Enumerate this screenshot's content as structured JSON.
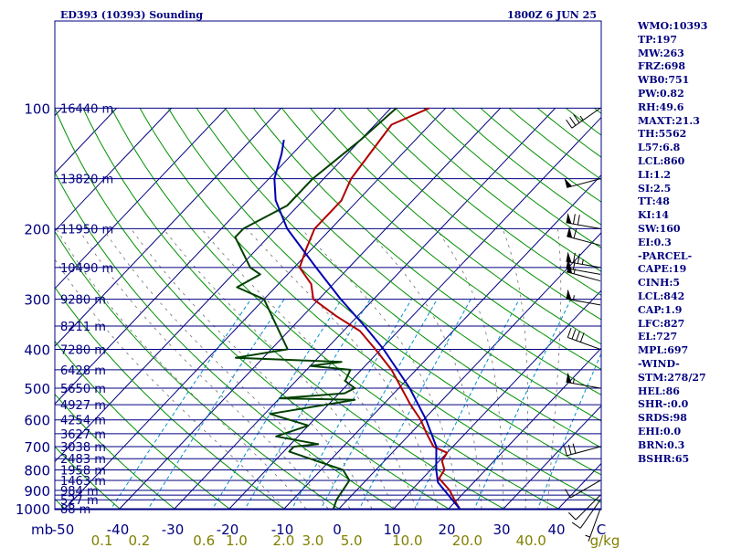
{
  "chart_data": {
    "type": "skew-t log-p sounding",
    "title": "ED393 (10393) Sounding",
    "valid_time": "1800Z  6 JUN 25",
    "xlabel": "",
    "ylabel": "mb",
    "pressure_axis": {
      "unit": "mb",
      "scale": "log",
      "range": [
        1000,
        100
      ],
      "tick_labels": [
        "100",
        "200",
        "300",
        "400",
        "500",
        "600",
        "700",
        "800",
        "900",
        "1000"
      ]
    },
    "temperature_axis": {
      "unit": "°C",
      "skewed": true,
      "range": [
        -50,
        50
      ],
      "tick_labels": [
        "-50",
        "-40",
        "-30",
        "-20",
        "-10",
        "0",
        "10",
        "20",
        "30",
        "40"
      ]
    },
    "mixing_ratio_axis": {
      "unit": "g/kg",
      "tick_labels": [
        "0.1",
        "0.2",
        "0.6",
        "1.0",
        "2.0",
        "3.0",
        "5.0",
        "10.0",
        "20.0",
        "40.0"
      ]
    },
    "height_labels": [
      "16440 m",
      "13820 m",
      "11950 m",
      "10490 m",
      "9280 m",
      "8211 m",
      "7280 m",
      "6428 m",
      "5650 m",
      "4927 m",
      "4254 m",
      "3627 m",
      "3038 m",
      "2483 m",
      "1958 m",
      "1463 m",
      "984 m",
      "527 m",
      "88 m"
    ],
    "height_pressures": [
      100,
      150,
      200,
      250,
      300,
      350,
      400,
      450,
      500,
      550,
      600,
      650,
      700,
      750,
      800,
      850,
      900,
      950,
      1000
    ],
    "isobars_mb": [
      100,
      150,
      200,
      250,
      300,
      350,
      400,
      450,
      500,
      550,
      600,
      650,
      700,
      750,
      800,
      850,
      900,
      925,
      950,
      1000
    ],
    "series": [
      {
        "name": "",
        "role": "temperature",
        "color": "#b00000",
        "points": [
          [
            100,
            -53
          ],
          [
            110,
            -57
          ],
          [
            150,
            -55
          ],
          [
            170,
            -53
          ],
          [
            200,
            -53
          ],
          [
            225,
            -51
          ],
          [
            250,
            -49
          ],
          [
            275,
            -44
          ],
          [
            300,
            -41
          ],
          [
            330,
            -34
          ],
          [
            360,
            -27
          ],
          [
            400,
            -21
          ],
          [
            430,
            -17
          ],
          [
            450,
            -14.5
          ],
          [
            500,
            -9.5
          ],
          [
            550,
            -5
          ],
          [
            600,
            -0.5
          ],
          [
            650,
            3
          ],
          [
            700,
            6.5
          ],
          [
            725,
            10
          ],
          [
            760,
            10.5
          ],
          [
            800,
            12.5
          ],
          [
            840,
            13
          ],
          [
            900,
            17
          ],
          [
            950,
            19.5
          ],
          [
            1000,
            22
          ]
        ]
      },
      {
        "name": "",
        "role": "dewpoint",
        "color": "#004000",
        "points": [
          [
            100,
            -59
          ],
          [
            120,
            -60
          ],
          [
            150,
            -62
          ],
          [
            175,
            -62
          ],
          [
            200,
            -66
          ],
          [
            210,
            -66
          ],
          [
            250,
            -58
          ],
          [
            260,
            -55
          ],
          [
            280,
            -57
          ],
          [
            300,
            -50
          ],
          [
            400,
            -37
          ],
          [
            420,
            -45
          ],
          [
            430,
            -25
          ],
          [
            440,
            -30
          ],
          [
            450,
            -22
          ],
          [
            480,
            -21
          ],
          [
            500,
            -18
          ],
          [
            515,
            -19
          ],
          [
            530,
            -30
          ],
          [
            535,
            -16
          ],
          [
            580,
            -29
          ],
          [
            620,
            -20
          ],
          [
            660,
            -24
          ],
          [
            690,
            -15
          ],
          [
            700,
            -19
          ],
          [
            720,
            -19
          ],
          [
            800,
            -6
          ],
          [
            850,
            -3
          ],
          [
            900,
            -2.5
          ],
          [
            950,
            -2
          ],
          [
            1000,
            -1
          ]
        ]
      },
      {
        "name": "",
        "role": "parcel",
        "color": "#0000b0",
        "points": [
          [
            1000,
            22
          ],
          [
            860,
            13.5
          ],
          [
            800,
            11
          ],
          [
            700,
            7
          ],
          [
            600,
            0.5
          ],
          [
            500,
            -8
          ],
          [
            400,
            -19.5
          ],
          [
            350,
            -27
          ],
          [
            300,
            -36
          ],
          [
            250,
            -46
          ],
          [
            200,
            -58
          ],
          [
            170,
            -65
          ],
          [
            150,
            -69
          ],
          [
            130,
            -72
          ],
          [
            120,
            -74
          ]
        ]
      }
    ],
    "wind_barbs": [
      {
        "pressure": 100,
        "direction": 235,
        "speed_kt": 35
      },
      {
        "pressure": 150,
        "direction": 255,
        "speed_kt": 50
      },
      {
        "pressure": 200,
        "direction": 280,
        "speed_kt": 70
      },
      {
        "pressure": 220,
        "direction": 285,
        "speed_kt": 60
      },
      {
        "pressure": 250,
        "direction": 280,
        "speed_kt": 75
      },
      {
        "pressure": 260,
        "direction": 280,
        "speed_kt": 60
      },
      {
        "pressure": 270,
        "direction": 285,
        "speed_kt": 55
      },
      {
        "pressure": 310,
        "direction": 280,
        "speed_kt": 55
      },
      {
        "pressure": 400,
        "direction": 290,
        "speed_kt": 40
      },
      {
        "pressure": 500,
        "direction": 280,
        "speed_kt": 55
      },
      {
        "pressure": 700,
        "direction": 255,
        "speed_kt": 30
      },
      {
        "pressure": 850,
        "direction": 240,
        "speed_kt": 10
      },
      {
        "pressure": 925,
        "direction": 225,
        "speed_kt": 10
      },
      {
        "pressure": 950,
        "direction": 215,
        "speed_kt": 10
      },
      {
        "pressure": 1000,
        "direction": 200,
        "speed_kt": 5
      }
    ],
    "colors": {
      "isobar": "#000080",
      "isotherm": "#000080",
      "dry_adiabat": "#009000",
      "moist_adiabat": "#009000",
      "mixing_ratio": "#0090d0",
      "barb": "#000000",
      "axis_text": "#000080",
      "mixing_text": "#808000"
    }
  },
  "indices": [
    "WMO:10393",
    "TP:197",
    "MW:263",
    "FRZ:698",
    "WB0:751",
    "PW:0.82",
    "RH:49.6",
    "MAXT:21.3",
    "TH:5562",
    "L57:6.8",
    "LCL:860",
    "LI:1.2",
    "SI:2.5",
    "TT:48",
    "KI:14",
    "SW:160",
    "EI:0.3",
    "-PARCEL-",
    "CAPE:19",
    "CINH:5",
    "LCL:842",
    "CAP:1.9",
    "LFC:827",
    "EL:727",
    "MPL:697",
    "-WIND-",
    "STM:278/27",
    "HEL:86",
    "SHR-:0.0",
    "SRDS:98",
    "EHI:0.0",
    "BRN:0.3",
    "BSHR:65"
  ]
}
